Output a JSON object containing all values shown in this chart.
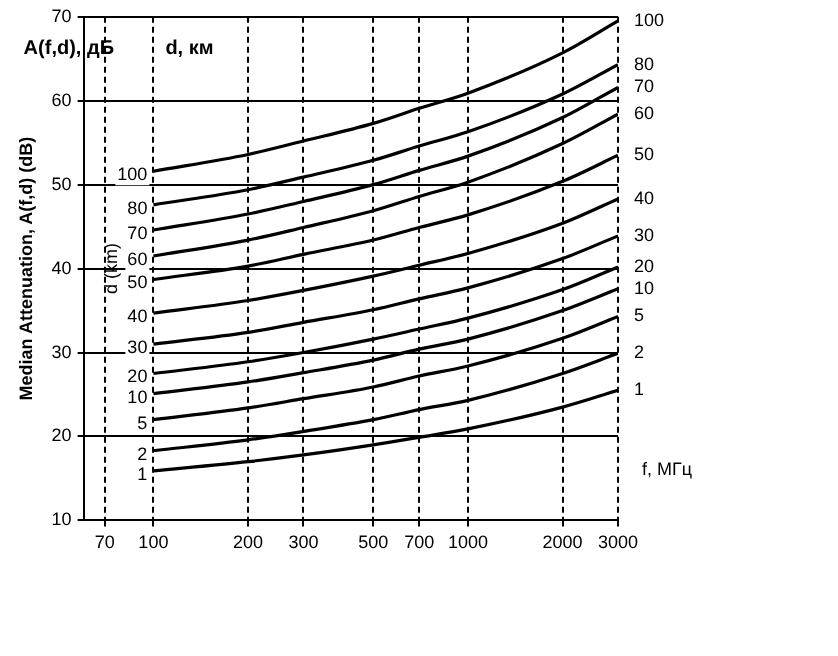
{
  "chart_data": {
    "type": "line",
    "xlabel": "f, МГц",
    "ylabel": "Median Attenuation, A(f,d) (dB)",
    "annotations": [
      "A(f,d), дБ",
      "d, км",
      "d (km)"
    ],
    "x": [
      100,
      200,
      300,
      500,
      700,
      1000,
      2000,
      3000
    ],
    "series": [
      {
        "name": "100",
        "color": "#000000",
        "values": [
          51.6,
          53.6,
          55.2,
          57.3,
          59.1,
          60.9,
          65.7,
          69.5
        ]
      },
      {
        "name": "80",
        "color": "#000000",
        "values": [
          47.6,
          49.4,
          50.9,
          52.9,
          54.6,
          56.3,
          60.8,
          64.3
        ]
      },
      {
        "name": "70",
        "color": "#000000",
        "values": [
          44.6,
          46.5,
          48,
          50,
          51.7,
          53.4,
          58,
          61.6
        ]
      },
      {
        "name": "60",
        "color": "#000000",
        "values": [
          41.5,
          43.4,
          44.9,
          46.9,
          48.6,
          50.3,
          54.9,
          58.4
        ]
      },
      {
        "name": "50",
        "color": "#000000",
        "values": [
          38.7,
          40.3,
          41.7,
          43.4,
          44.9,
          46.4,
          50.4,
          53.5
        ]
      },
      {
        "name": "40",
        "color": "#000000",
        "values": [
          34.7,
          36.2,
          37.4,
          39.1,
          40.4,
          41.8,
          45.4,
          48.3
        ]
      },
      {
        "name": "30",
        "color": "#000000",
        "values": [
          31,
          32.4,
          33.6,
          35.1,
          36.4,
          37.7,
          41.2,
          43.9
        ]
      },
      {
        "name": "20",
        "color": "#000000",
        "values": [
          27.5,
          28.9,
          30,
          31.6,
          32.8,
          34.1,
          37.5,
          40.2
        ]
      },
      {
        "name": "10",
        "color": "#000000",
        "values": [
          25.1,
          26.5,
          27.6,
          29.1,
          30.4,
          31.6,
          35,
          37.6
        ]
      },
      {
        "name": "5",
        "color": "#000000",
        "values": [
          22,
          23.4,
          24.5,
          25.9,
          27.2,
          28.4,
          31.7,
          34.3
        ]
      },
      {
        "name": "2",
        "color": "#000000",
        "values": [
          18.3,
          19.6,
          20.6,
          22,
          23.2,
          24.3,
          27.5,
          29.9
        ]
      },
      {
        "name": "1",
        "color": "#000000",
        "values": [
          15.9,
          17,
          17.8,
          19,
          19.9,
          20.9,
          23.5,
          25.5
        ]
      }
    ],
    "xlim": [
      60,
      3000
    ],
    "xticks": [
      70,
      100,
      200,
      300,
      500,
      700,
      1000,
      2000,
      3000
    ],
    "ylim": [
      10,
      70
    ],
    "yticks": [
      10,
      20,
      30,
      40,
      50,
      60,
      70
    ],
    "log": "x",
    "grid": true,
    "legend": false,
    "marker": "none",
    "line_style": "solid"
  }
}
